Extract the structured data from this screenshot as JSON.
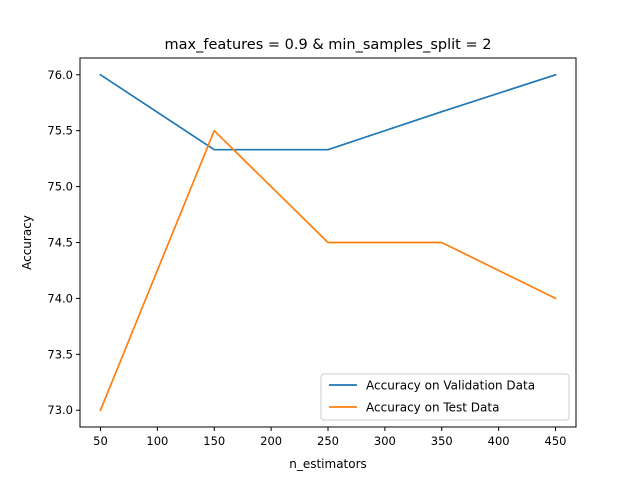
{
  "chart_data": {
    "type": "line",
    "title": "max_features = 0.9 & min_samples_split = 2",
    "xlabel": "n_estimators",
    "ylabel": "Accuracy",
    "x": [
      50,
      150,
      250,
      350,
      450
    ],
    "xlim": [
      32,
      468
    ],
    "ylim": [
      72.85,
      76.15
    ],
    "x_ticks": [
      50,
      100,
      150,
      200,
      250,
      300,
      350,
      400,
      450
    ],
    "y_ticks": [
      73.0,
      73.5,
      74.0,
      74.5,
      75.0,
      75.5,
      76.0
    ],
    "y_tick_labels": [
      "73.0",
      "73.5",
      "74.0",
      "74.5",
      "75.0",
      "75.5",
      "76.0"
    ],
    "grid": false,
    "legend_position": "lower-right",
    "series": [
      {
        "name": "Accuracy on Validation Data",
        "color": "#1f77b4",
        "values": [
          76.0,
          75.33,
          75.33,
          75.67,
          76.0
        ]
      },
      {
        "name": "Accuracy on Test Data",
        "color": "#ff7f0e",
        "values": [
          73.0,
          75.5,
          74.5,
          74.5,
          74.0
        ]
      }
    ]
  }
}
